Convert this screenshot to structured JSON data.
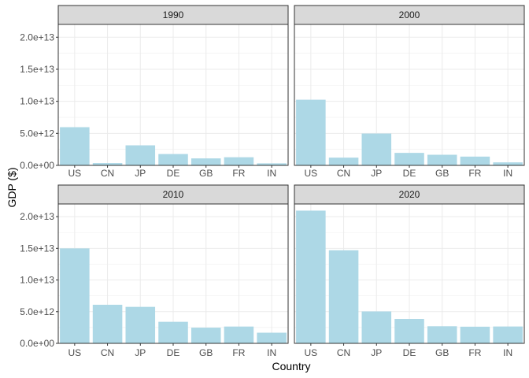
{
  "chart_data": {
    "type": "bar",
    "facet_by": "year",
    "xlabel": "Country",
    "ylabel": "GDP ($)",
    "ylim": [
      0,
      22000000000000
    ],
    "y_ticks": [
      0,
      5000000000000,
      10000000000000,
      15000000000000,
      20000000000000
    ],
    "y_tick_labels": [
      "0.0e+00",
      "5.0e+12",
      "1.0e+13",
      "1.5e+13",
      "2.0e+13"
    ],
    "categories": [
      "US",
      "CN",
      "JP",
      "DE",
      "GB",
      "FR",
      "IN"
    ],
    "bar_color": "#ADD8E6",
    "strip_color": "#D9D9D9",
    "grid": true,
    "legend": "none",
    "panels": [
      {
        "title": "1990",
        "values": [
          5960000000000.0,
          360000000000.0,
          3130000000000.0,
          1770000000000.0,
          1090000000000.0,
          1270000000000.0,
          320000000000.0
        ]
      },
      {
        "title": "2000",
        "values": [
          10250000000000.0,
          1210000000000.0,
          4970000000000.0,
          1950000000000.0,
          1660000000000.0,
          1370000000000.0,
          470000000000.0
        ]
      },
      {
        "title": "2010",
        "values": [
          14990000000000.0,
          6090000000000.0,
          5760000000000.0,
          3400000000000.0,
          2480000000000.0,
          2650000000000.0,
          1680000000000.0
        ]
      },
      {
        "title": "2020",
        "values": [
          20950000000000.0,
          14690000000000.0,
          5040000000000.0,
          3850000000000.0,
          2700000000000.0,
          2630000000000.0,
          2660000000000.0
        ]
      }
    ]
  }
}
